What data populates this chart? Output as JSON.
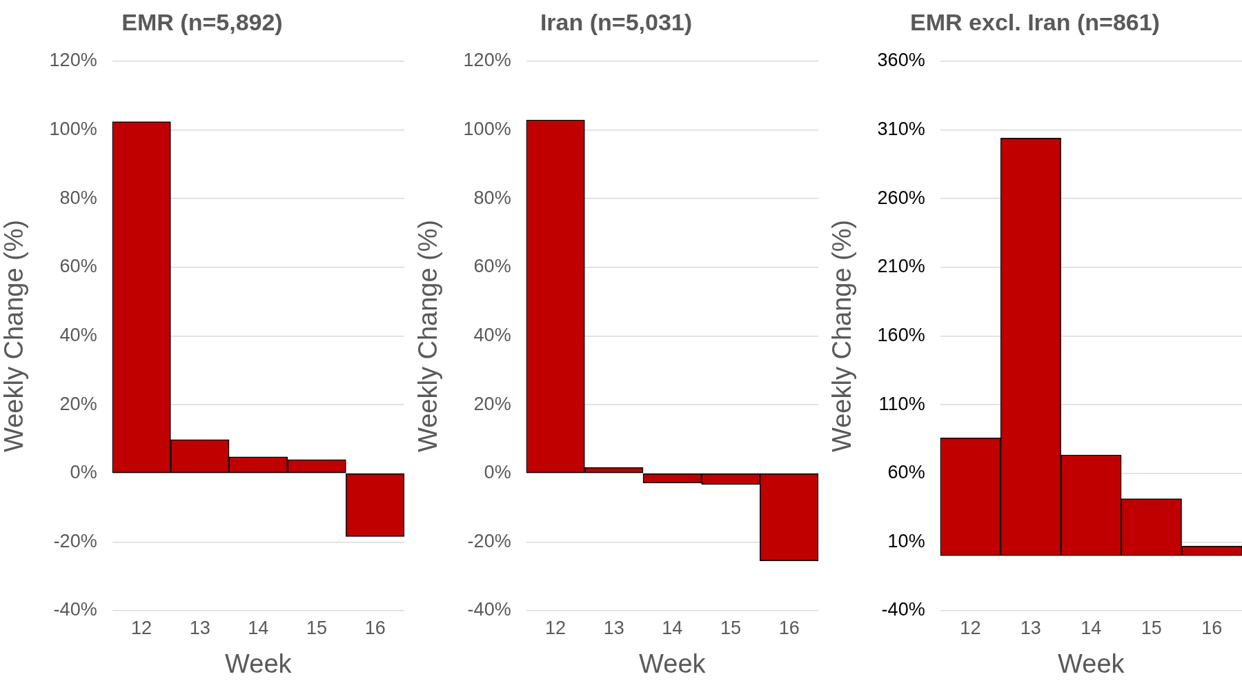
{
  "chart_data": [
    {
      "type": "bar",
      "title": "EMR (n=5,892)",
      "xlabel": "Week",
      "ylabel": "Weekly Change (%)",
      "categories": [
        "12",
        "13",
        "14",
        "15",
        "16"
      ],
      "values": [
        102.4,
        9.8,
        4.8,
        4.0,
        -18.4
      ],
      "color": "#c00000",
      "ylim": [
        -40,
        120
      ],
      "yticks": [
        {
          "value": -40,
          "label": "-40%"
        },
        {
          "value": -20,
          "label": "-20%"
        },
        {
          "value": 0,
          "label": "0%"
        },
        {
          "value": 20,
          "label": "20%"
        },
        {
          "value": 40,
          "label": "40%"
        },
        {
          "value": 60,
          "label": "60%"
        },
        {
          "value": 80,
          "label": "80%"
        },
        {
          "value": 100,
          "label": "100%"
        },
        {
          "value": 120,
          "label": "120%"
        }
      ],
      "grid": "y",
      "legend": false
    },
    {
      "type": "bar",
      "title": "Iran (n=5,031)",
      "xlabel": "Week",
      "ylabel": "Weekly Change (%)",
      "categories": [
        "12",
        "13",
        "14",
        "15",
        "16"
      ],
      "values": [
        102.9,
        1.7,
        -2.8,
        -3.2,
        -25.5
      ],
      "color": "#c00000",
      "ylim": [
        -40,
        120
      ],
      "yticks": [
        {
          "value": -40,
          "label": "-40%"
        },
        {
          "value": -20,
          "label": "-20%"
        },
        {
          "value": 0,
          "label": "0%"
        },
        {
          "value": 20,
          "label": "20%"
        },
        {
          "value": 40,
          "label": "40%"
        },
        {
          "value": 60,
          "label": "60%"
        },
        {
          "value": 80,
          "label": "80%"
        },
        {
          "value": 100,
          "label": "100%"
        },
        {
          "value": 120,
          "label": "120%"
        }
      ],
      "grid": "y",
      "legend": false
    },
    {
      "type": "bar",
      "title": "EMR excl. Iran (n=861)",
      "xlabel": "Week",
      "ylabel": "Weekly Change (%)",
      "categories": [
        "12",
        "13",
        "14",
        "15",
        "16"
      ],
      "values": [
        85.8,
        304.1,
        73.4,
        41.5,
        7.0
      ],
      "color": "#c00000",
      "ylim": [
        -40,
        360
      ],
      "yticks": [
        {
          "value": -40,
          "label": "-40%"
        },
        {
          "value": 10,
          "label": "10%"
        },
        {
          "value": 60,
          "label": "60%"
        },
        {
          "value": 110,
          "label": "110%"
        },
        {
          "value": 160,
          "label": "160%"
        },
        {
          "value": 210,
          "label": "210%"
        },
        {
          "value": 260,
          "label": "260%"
        },
        {
          "value": 310,
          "label": "310%"
        },
        {
          "value": 360,
          "label": "360%"
        }
      ],
      "grid": "y",
      "legend": false
    }
  ]
}
